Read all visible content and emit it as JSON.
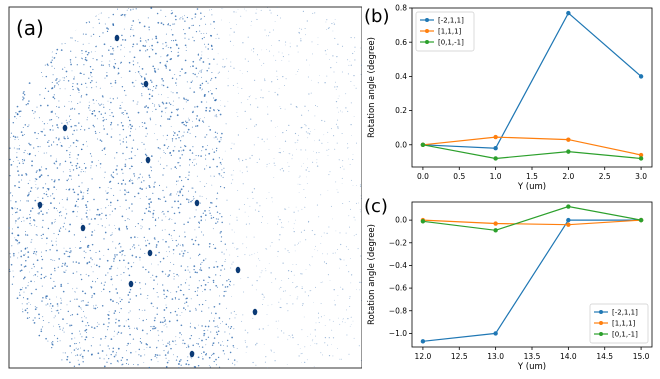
{
  "panels": {
    "a": {
      "label": "(a)"
    },
    "b": {
      "label": "(b)"
    },
    "c": {
      "label": "(c)"
    }
  },
  "colors": {
    "dots": "#1f5fa8",
    "series_1": "#1f77b4",
    "series_2": "#ff7f0e",
    "series_3": "#2ca02c"
  },
  "chart_data": [
    {
      "panel": "b",
      "type": "line",
      "xlabel": "Y (um)",
      "ylabel": "Rotation angle (degree)",
      "xlim": [
        -0.15,
        3.15
      ],
      "ylim": [
        -0.13,
        0.8
      ],
      "xticks": [
        0.0,
        0.5,
        1.0,
        1.5,
        2.0,
        2.5,
        3.0
      ],
      "xtick_labels": [
        "0.0",
        "0.5",
        "1.0",
        "1.5",
        "2.0",
        "2.5",
        "3.0"
      ],
      "yticks": [
        0.0,
        0.2,
        0.4,
        0.6,
        0.8
      ],
      "ytick_labels": [
        "0.0",
        "0.2",
        "0.4",
        "0.6",
        "0.8"
      ],
      "legend_position": "top-left",
      "x": [
        0,
        1,
        2,
        3
      ],
      "series": [
        {
          "name": "[-2,1,1]",
          "values": [
            0.0,
            -0.02,
            0.77,
            0.4
          ]
        },
        {
          "name": "[1,1,1]",
          "values": [
            0.0,
            0.045,
            0.03,
            -0.06
          ]
        },
        {
          "name": "[0,1,-1]",
          "values": [
            0.0,
            -0.08,
            -0.04,
            -0.08
          ]
        }
      ]
    },
    {
      "panel": "c",
      "type": "line",
      "xlabel": "Y (um)",
      "ylabel": "Rotation angle (degree)",
      "xlim": [
        11.85,
        15.15
      ],
      "ylim": [
        -1.12,
        0.16
      ],
      "xticks": [
        12.0,
        12.5,
        13.0,
        13.5,
        14.0,
        14.5,
        15.0
      ],
      "xtick_labels": [
        "12.0",
        "12.5",
        "13.0",
        "13.5",
        "14.0",
        "14.5",
        "15.0"
      ],
      "yticks": [
        -1.0,
        -0.8,
        -0.6,
        -0.4,
        -0.2,
        0.0
      ],
      "ytick_labels": [
        "−1.0",
        "−0.8",
        "−0.6",
        "−0.4",
        "−0.2",
        "0.0"
      ],
      "legend_position": "bottom-right",
      "x": [
        12,
        13,
        14,
        15
      ],
      "series": [
        {
          "name": "[-2,1,1]",
          "values": [
            -1.07,
            -1.0,
            0.0,
            0.0
          ]
        },
        {
          "name": "[1,1,1]",
          "values": [
            0.0,
            -0.03,
            -0.04,
            0.0
          ]
        },
        {
          "name": "[0,1,-1]",
          "values": [
            -0.01,
            -0.09,
            0.12,
            0.0
          ]
        }
      ]
    }
  ]
}
